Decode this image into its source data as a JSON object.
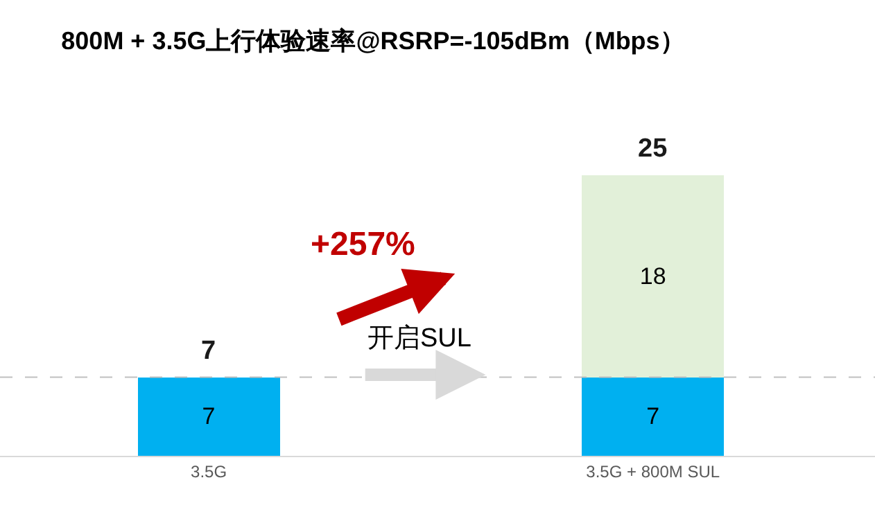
{
  "chart_data": {
    "type": "bar",
    "title": "800M + 3.5G上行体验速率@RSRP=-105dBm（Mbps）",
    "categories": [
      "3.5G",
      "3.5G + 800M SUL"
    ],
    "stacked": true,
    "series": [
      {
        "color": "#00b0f0",
        "values": [
          7,
          7
        ]
      },
      {
        "color": "#e2f0d9",
        "values": [
          null,
          18
        ]
      }
    ],
    "data_labels": true,
    "totals": [
      "7",
      "25"
    ],
    "ref_lines": [
      {
        "axis": "y",
        "value": 7,
        "color": "#bfbfbf",
        "line_style": "dashed"
      }
    ],
    "annotations": [
      "+257%",
      "开启SUL"
    ]
  }
}
